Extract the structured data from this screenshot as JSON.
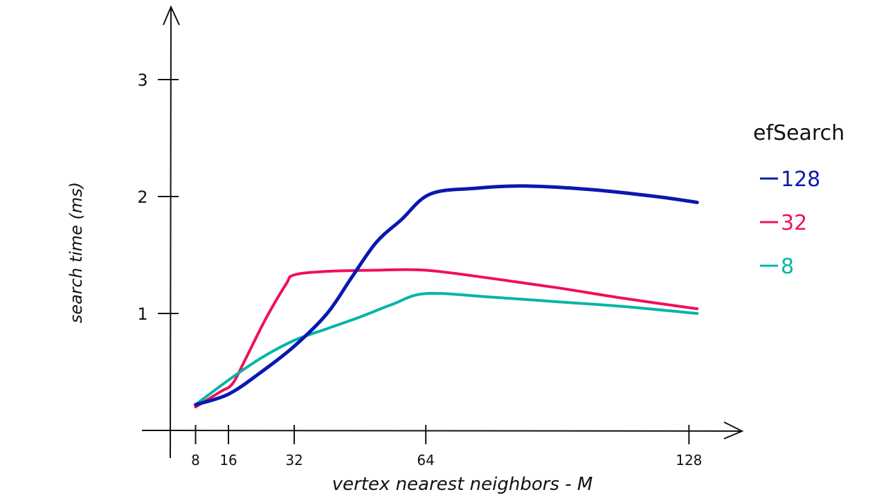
{
  "chart_data": {
    "type": "line",
    "title": "",
    "xlabel": "vertex nearest neighbors - M",
    "ylabel": "search time (ms)",
    "xticks": [
      8,
      16,
      32,
      64,
      128
    ],
    "yticks": [
      1,
      2,
      3
    ],
    "xlim": [
      0,
      140
    ],
    "ylim": [
      0,
      3.6
    ],
    "grid": false,
    "legend": {
      "title": "efSearch",
      "placement": "right"
    },
    "series": [
      {
        "name": "128",
        "color": "#0a18b0",
        "x": [
          8,
          16,
          24,
          32,
          40,
          46,
          52,
          58,
          65,
          76,
          88,
          104,
          120,
          130
        ],
        "y": [
          0.22,
          0.31,
          0.5,
          0.72,
          1.0,
          1.31,
          1.61,
          1.8,
          2.02,
          2.07,
          2.09,
          2.06,
          2.0,
          1.95
        ]
      },
      {
        "name": "32",
        "color": "#f0105a",
        "x": [
          8,
          14,
          17,
          20,
          25,
          30,
          32,
          40,
          52,
          64,
          80,
          96,
          112,
          130
        ],
        "y": [
          0.2,
          0.33,
          0.4,
          0.6,
          0.95,
          1.25,
          1.33,
          1.36,
          1.37,
          1.37,
          1.3,
          1.22,
          1.13,
          1.04
        ]
      },
      {
        "name": "8",
        "color": "#00b5a8",
        "x": [
          8,
          16,
          24,
          32,
          40,
          48,
          56,
          64,
          80,
          96,
          112,
          130
        ],
        "y": [
          0.22,
          0.43,
          0.62,
          0.77,
          0.87,
          0.97,
          1.08,
          1.17,
          1.14,
          1.1,
          1.06,
          1.0
        ]
      }
    ]
  }
}
